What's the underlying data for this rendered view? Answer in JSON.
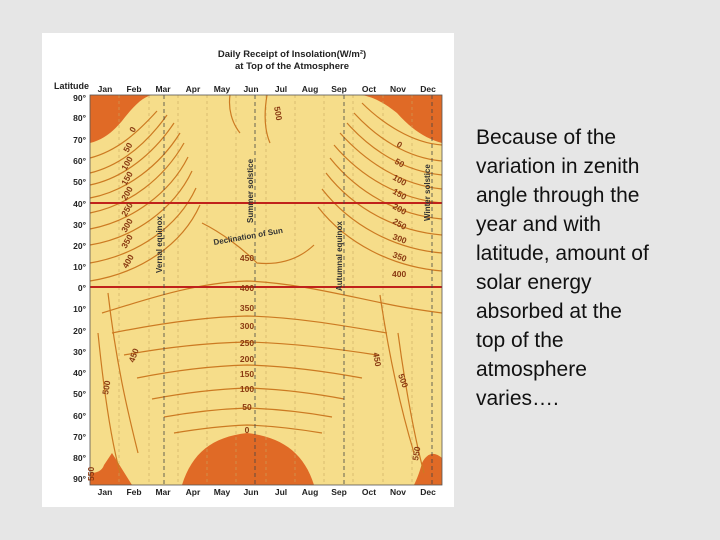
{
  "figure": {
    "title_line1": "Daily Receipt of Insolation(W/m²)",
    "title_line2": "at Top of the Atmosphere",
    "y_axis_label": "Latitude",
    "months_top": [
      "Jan",
      "Feb",
      "Mar",
      "Apr",
      "May",
      "Jun",
      "Jul",
      "Aug",
      "Sep",
      "Oct",
      "Nov",
      "Dec"
    ],
    "months_bottom": [
      "Jan",
      "Feb",
      "Mar",
      "Apr",
      "May",
      "Jun",
      "Jul",
      "Aug",
      "Sep",
      "Oct",
      "Nov",
      "Dec"
    ],
    "latitudes": [
      "90°",
      "80°",
      "70°",
      "60°",
      "50°",
      "40°",
      "30°",
      "20°",
      "10°",
      "0°",
      "10°",
      "20°",
      "30°",
      "40°",
      "50°",
      "60°",
      "70°",
      "80°",
      "90°"
    ],
    "event_labels": {
      "vernal": "Vernal equinox",
      "summer": "Summer solstice",
      "autumnal": "Autumnal equinox",
      "winter": "Winter solstice",
      "declination": "Declination of Sun"
    },
    "contour_labels_left": [
      "0",
      "50",
      "100",
      "150",
      "200",
      "250",
      "300",
      "350",
      "400"
    ],
    "contour_labels_right": [
      "0",
      "50",
      "100",
      "150",
      "200",
      "250",
      "300",
      "350",
      "400"
    ],
    "contour_labels_center": [
      "450",
      "400",
      "350",
      "300",
      "250",
      "200",
      "150",
      "100",
      "50",
      "0"
    ],
    "label_500_top": "500",
    "label_450_left": "450",
    "label_500_left": "500",
    "label_550_left": "550",
    "label_450_right": "450",
    "label_500_right": "500",
    "label_550_right": "550",
    "colors": {
      "fill": "#f6dd8a",
      "contour": "#cc7a22",
      "polar_night": "#e06a26",
      "reference_line": "#c0221b",
      "event_line": "#333333"
    }
  },
  "caption": {
    "lines": [
      "Because of the",
      "variation in zenith",
      "angle through the",
      "year and with",
      "latitude, amount of",
      "solar energy",
      "absorbed at the",
      "top of the",
      "atmosphere",
      "varies…."
    ]
  }
}
